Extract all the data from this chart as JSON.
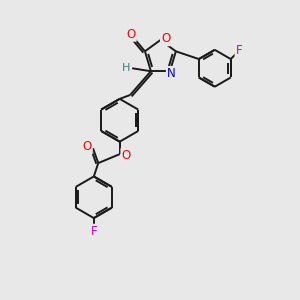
{
  "background_color": "#e8e8e8",
  "bond_color": "#1a1a1a",
  "atom_colors": {
    "O": "#ff0000",
    "N": "#0000cd",
    "F": "#cc00cc",
    "H": "#4a7a7a",
    "C": "#1a1a1a"
  },
  "figsize": [
    3.0,
    3.0
  ],
  "dpi": 100
}
